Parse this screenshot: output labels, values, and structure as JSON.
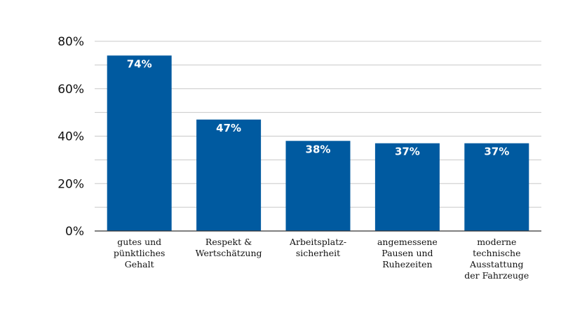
{
  "chart_data": {
    "type": "bar",
    "categories": [
      [
        "gutes und",
        "pünktliches",
        "Gehalt"
      ],
      [
        "Respekt &",
        "Wertschätzung"
      ],
      [
        "Arbeitsplatz-",
        "sicherheit"
      ],
      [
        "angemessene",
        "Pausen und",
        "Ruhezeiten"
      ],
      [
        "moderne",
        "technische",
        "Ausstattung",
        "der Fahrzeuge"
      ]
    ],
    "values": [
      74,
      47,
      38,
      37,
      37
    ],
    "data_labels": [
      "74%",
      "47%",
      "38%",
      "37%",
      "37%"
    ],
    "y_ticks": [
      {
        "value": 0,
        "label": "0%"
      },
      {
        "value": 20,
        "label": "20%"
      },
      {
        "value": 40,
        "label": "40%"
      },
      {
        "value": 60,
        "label": "60%"
      },
      {
        "value": 80,
        "label": "80%"
      }
    ],
    "minor_gridlines": [
      10,
      30,
      50,
      70
    ],
    "ylim": [
      0,
      80
    ],
    "grid": true,
    "colors": {
      "bar": "#005aa0",
      "grid": "#c8c8c8",
      "axis": "#333333"
    }
  }
}
